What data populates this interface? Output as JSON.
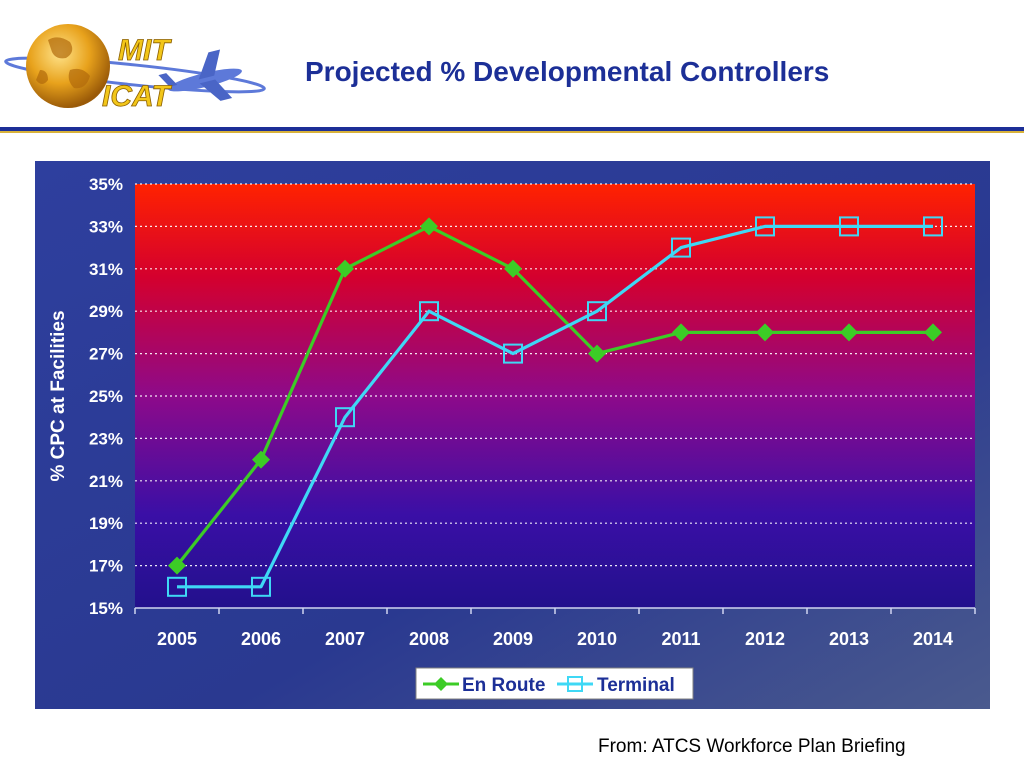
{
  "logo": {
    "line1": "MIT",
    "line2": "ICAT",
    "text_color": "#f2c619",
    "globe_color": "#e8a21c",
    "plane_color": "#5d79d9"
  },
  "slide": {
    "title": "Projected % Developmental Controllers",
    "title_color": "#1c2f97",
    "source": "From: ATCS Workforce Plan Briefing"
  },
  "chart_data": {
    "type": "line",
    "categories": [
      "2005",
      "2006",
      "2007",
      "2008",
      "2009",
      "2010",
      "2011",
      "2012",
      "2013",
      "2014"
    ],
    "series": [
      {
        "name": "En Route",
        "values": [
          17,
          22,
          31,
          33,
          31,
          27,
          28,
          28,
          28,
          28
        ],
        "color": "#3ccc26",
        "marker": "diamond"
      },
      {
        "name": "Terminal",
        "values": [
          16,
          16,
          24,
          29,
          27,
          29,
          32,
          33,
          33,
          33
        ],
        "color": "#3fd8f5",
        "marker": "square"
      }
    ],
    "ylabel": "% CPC at Facilities",
    "ylim": [
      15,
      35
    ],
    "yticks": [
      15,
      17,
      19,
      21,
      23,
      25,
      27,
      29,
      31,
      33,
      35
    ],
    "ytick_labels": [
      "15%",
      "17%",
      "19%",
      "21%",
      "23%",
      "25%",
      "27%",
      "29%",
      "31%",
      "33%",
      "35%"
    ],
    "grid": true,
    "legend_position": "bottom-center",
    "plot_gradient": [
      "#ff2200",
      "#b8005a",
      "#6a0aa0",
      "#2b0fa0",
      "#20108a"
    ],
    "panel_background": "#2c3b98"
  }
}
